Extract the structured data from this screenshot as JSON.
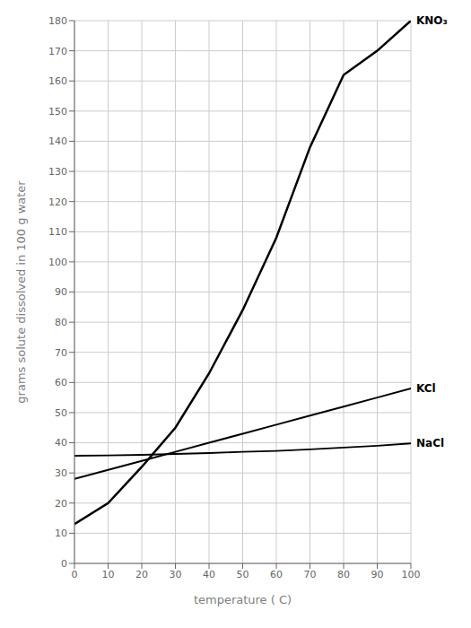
{
  "chart_data": {
    "type": "line",
    "xlabel": "temperature ( C)",
    "ylabel": "grams solute dissolved in 100 g water",
    "x": [
      0,
      10,
      20,
      30,
      40,
      50,
      60,
      70,
      80,
      90,
      100
    ],
    "series": [
      {
        "name": "KNO₃",
        "color": "#000000",
        "values": [
          13,
          20,
          32,
          45,
          63,
          84,
          108,
          138,
          162,
          170,
          180
        ]
      },
      {
        "name": "KCl",
        "color": "#000000",
        "values": [
          28,
          31,
          34,
          37,
          40,
          43,
          46,
          49,
          52,
          55,
          58
        ]
      },
      {
        "name": "NaCl",
        "color": "#000000",
        "values": [
          35.7,
          35.8,
          36.0,
          36.3,
          36.6,
          37.0,
          37.3,
          37.8,
          38.4,
          39.0,
          39.8
        ]
      }
    ],
    "xlim": [
      0,
      100
    ],
    "ylim": [
      0,
      180
    ],
    "xticks": [
      0,
      10,
      20,
      30,
      40,
      50,
      60,
      70,
      80,
      90,
      100
    ],
    "yticks": [
      0,
      10,
      20,
      30,
      40,
      50,
      60,
      70,
      80,
      90,
      100,
      110,
      120,
      130,
      140,
      150,
      160,
      170,
      180
    ],
    "grid": true
  }
}
